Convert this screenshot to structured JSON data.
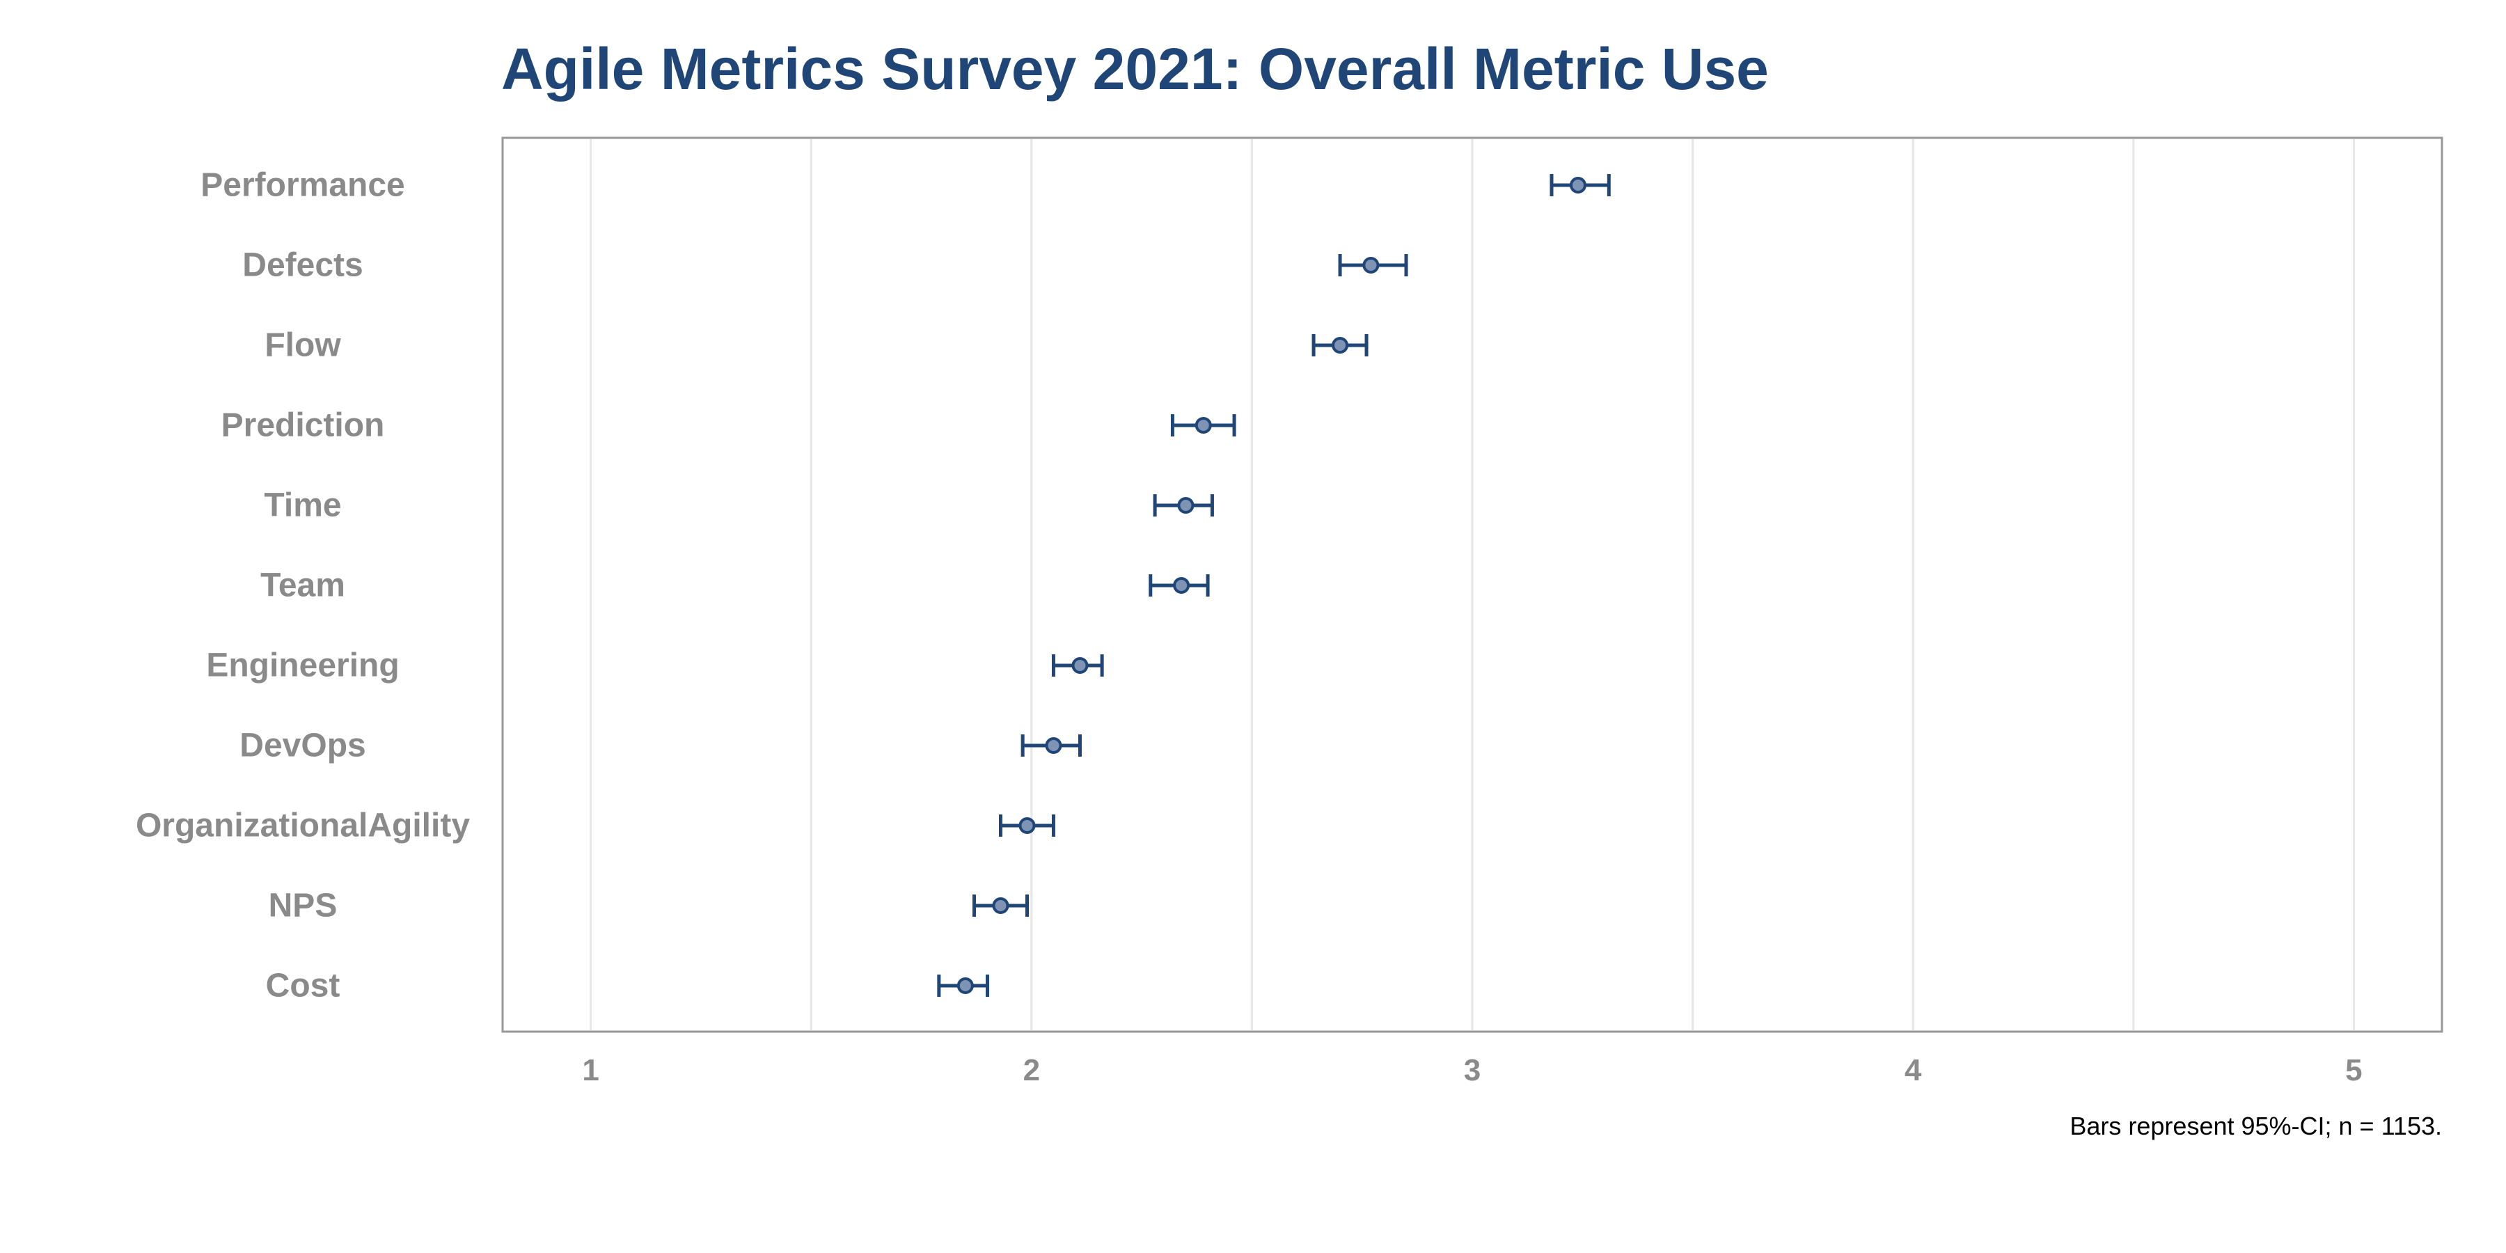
{
  "chart_data": {
    "type": "scatter",
    "title": "Agile Metrics Survey 2021: Overall Metric Use",
    "caption": "Bars represent 95%-CI; n = 1153.",
    "xlabel": "",
    "ylabel": "",
    "xlim": [
      0.8,
      5.2
    ],
    "x_ticks": [
      1,
      2,
      3,
      4,
      5
    ],
    "x_tick_labels": [
      "1",
      "2",
      "3",
      "4",
      "5"
    ],
    "x_gridlines": [
      1,
      1.5,
      2,
      2.5,
      3,
      3.5,
      4,
      4.5,
      5
    ],
    "grid": true,
    "legend": "none",
    "error_bars": "95% CI",
    "colors": {
      "marker": "#1f4677",
      "marker_fill": "#7f93b5",
      "title": "#1f4677",
      "label": "#8a8a8a",
      "grid": "#e6e6e6",
      "frame": "#999999"
    },
    "points": [
      {
        "category": "Performance",
        "mean": 3.24,
        "ci_low": 3.18,
        "ci_high": 3.31
      },
      {
        "category": "Defects",
        "mean": 2.77,
        "ci_low": 2.7,
        "ci_high": 2.85
      },
      {
        "category": "Flow",
        "mean": 2.7,
        "ci_low": 2.64,
        "ci_high": 2.76
      },
      {
        "category": "Prediction",
        "mean": 2.39,
        "ci_low": 2.32,
        "ci_high": 2.46
      },
      {
        "category": "Time",
        "mean": 2.35,
        "ci_low": 2.28,
        "ci_high": 2.41
      },
      {
        "category": "Team",
        "mean": 2.34,
        "ci_low": 2.27,
        "ci_high": 2.4
      },
      {
        "category": "Engineering",
        "mean": 2.11,
        "ci_low": 2.05,
        "ci_high": 2.16
      },
      {
        "category": "DevOps",
        "mean": 2.05,
        "ci_low": 1.98,
        "ci_high": 2.11
      },
      {
        "category": "OrganizationalAgility",
        "mean": 1.99,
        "ci_low": 1.93,
        "ci_high": 2.05
      },
      {
        "category": "NPS",
        "mean": 1.93,
        "ci_low": 1.87,
        "ci_high": 1.99
      },
      {
        "category": "Cost",
        "mean": 1.85,
        "ci_low": 1.79,
        "ci_high": 1.9
      }
    ]
  }
}
